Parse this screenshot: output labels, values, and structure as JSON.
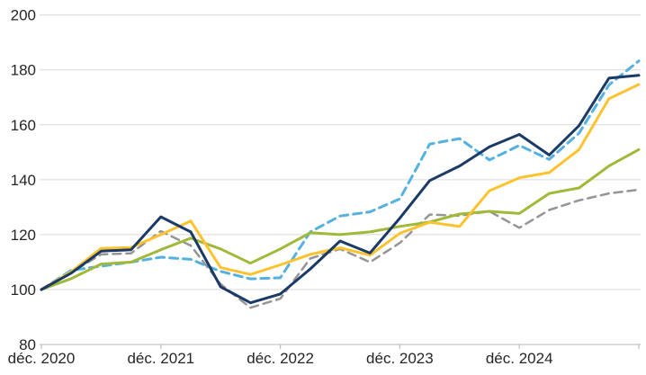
{
  "chart_data": {
    "type": "line",
    "title": "",
    "xlabel": "",
    "ylabel": "",
    "index_base_note": "all series start at 100 at déc. 2020",
    "x_tick_labels": [
      "déc. 2020",
      "déc. 2021",
      "déc. 2022",
      "déc. 2023",
      "déc. 2024"
    ],
    "points_per_year": 4,
    "n_points": 21,
    "x_range_quarters": [
      "déc. 2020",
      "déc. 2025"
    ],
    "y_ticks": [
      80,
      100,
      120,
      140,
      160,
      180,
      200
    ],
    "ylim": [
      80,
      200
    ],
    "grid": "horizontal-only",
    "legend_position": "none",
    "colors": {
      "grid": "#d9d9d9",
      "axis": "#bfbfbf",
      "text": "#262626",
      "background": "#ffffff"
    },
    "series": [
      {
        "id": "gray-dashed",
        "color": "#959595",
        "style": "dashed",
        "width": 2.5,
        "values": [
          100,
          106.3,
          112.8,
          113.2,
          121.3,
          116,
          102,
          93.4,
          96.7,
          111.3,
          114.8,
          110,
          117,
          127.3,
          126.9,
          128.5,
          122.5,
          129,
          132.5,
          135,
          136.4
        ]
      },
      {
        "id": "light-blue-dashed",
        "color": "#54b1e0",
        "style": "dashed",
        "width": 3,
        "values": [
          100,
          107,
          108.5,
          110,
          111.8,
          111,
          106.6,
          103.9,
          104.3,
          121,
          126.8,
          128.3,
          133,
          153,
          155,
          147.2,
          152.5,
          147.4,
          157,
          174.5,
          183.3
        ]
      },
      {
        "id": "green-solid",
        "color": "#9fba38",
        "style": "solid",
        "width": 3,
        "values": [
          100,
          104,
          109.3,
          110,
          114.5,
          118.7,
          114.8,
          109.6,
          114.8,
          120.7,
          120,
          121,
          123,
          124.6,
          127.5,
          128.5,
          127.7,
          135,
          137,
          145,
          151
        ]
      },
      {
        "id": "yellow-solid",
        "color": "#fdc32f",
        "style": "solid",
        "width": 3,
        "values": [
          100,
          106.5,
          115,
          115.3,
          120,
          125,
          108,
          105.5,
          109,
          112.8,
          115.2,
          112.5,
          120.5,
          124.5,
          123,
          136,
          140.7,
          142.6,
          151,
          169.5,
          174.7
        ]
      },
      {
        "id": "dark-blue-solid",
        "color": "#1b3a66",
        "style": "solid",
        "width": 3,
        "values": [
          100,
          106,
          114,
          114.5,
          126.5,
          121,
          101,
          95.2,
          98.4,
          107.5,
          117.7,
          113.3,
          126,
          139.7,
          145,
          152,
          156.5,
          149,
          159.7,
          177,
          178
        ]
      }
    ]
  }
}
